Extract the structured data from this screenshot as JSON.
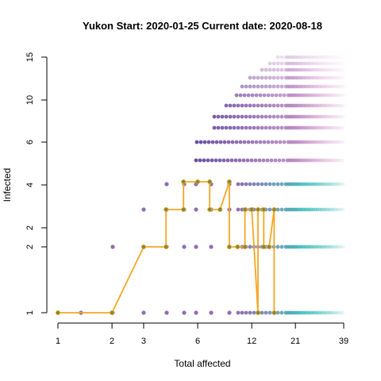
{
  "chart_data": {
    "type": "scatter",
    "title": "Yukon Start:  2020-01-25   Current date:  2020-08-18",
    "xlabel": "Total affected",
    "ylabel": "Infected",
    "x_scale": "log",
    "y_scale": "log",
    "xlim": [
      1,
      39
    ],
    "x_ticks": [
      1,
      2,
      3,
      6,
      12,
      21,
      39
    ],
    "x_tick_labels": [
      "1",
      "2",
      "3",
      "6",
      "12",
      "21",
      "39"
    ],
    "y_tick_labels": [
      "1",
      "2",
      "2",
      "4",
      "6",
      "10",
      "15"
    ],
    "grid": false,
    "legend": "none",
    "colors": {
      "trajectory_line": "#f5a623",
      "trajectory_point": "#7a8a40",
      "purple_points": "#7b55a6",
      "teal_points": "#3cbcb8",
      "pink_points": "#d9a0d0"
    },
    "trajectory": [
      {
        "x": 1,
        "y": 1
      },
      {
        "x": 2,
        "y": 1
      },
      {
        "x": 3,
        "y": 2
      },
      {
        "x": 4,
        "y": 2
      },
      {
        "x": 4,
        "y": 3
      },
      {
        "x": 5,
        "y": 3
      },
      {
        "x": 5,
        "y": 4
      },
      {
        "x": 6,
        "y": 4
      },
      {
        "x": 7,
        "y": 4
      },
      {
        "x": 7,
        "y": 3
      },
      {
        "x": 8,
        "y": 3
      },
      {
        "x": 9,
        "y": 4
      },
      {
        "x": 9,
        "y": 2
      },
      {
        "x": 10,
        "y": 2
      },
      {
        "x": 11,
        "y": 2
      },
      {
        "x": 11,
        "y": 3
      },
      {
        "x": 12,
        "y": 3
      },
      {
        "x": 13,
        "y": 1
      },
      {
        "x": 13,
        "y": 3
      },
      {
        "x": 14,
        "y": 3
      },
      {
        "x": 14,
        "y": 2
      },
      {
        "x": 15,
        "y": 2
      },
      {
        "x": 16,
        "y": 3
      },
      {
        "x": 16,
        "y": 1
      }
    ]
  }
}
